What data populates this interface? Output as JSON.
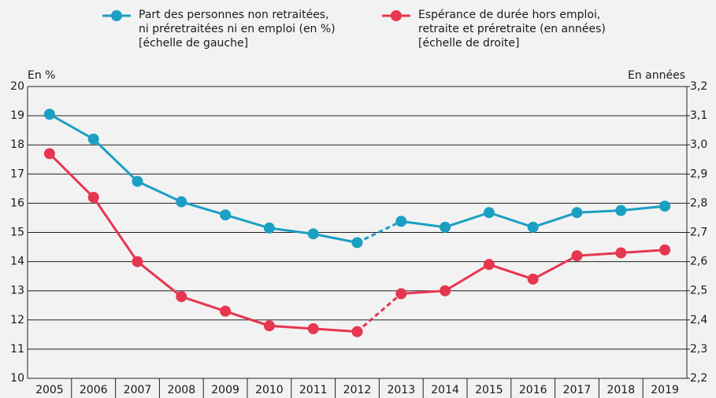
{
  "chart_data": {
    "type": "line",
    "categories": [
      "2005",
      "2006",
      "2007",
      "2008",
      "2009",
      "2010",
      "2011",
      "2012",
      "2013",
      "2014",
      "2015",
      "2016",
      "2017",
      "2018",
      "2019"
    ],
    "dashed_between": [
      "2012",
      "2013"
    ],
    "ylabel": "En %",
    "y2label": "En années",
    "ylim": [
      10,
      20
    ],
    "yticks": [
      10,
      11,
      12,
      13,
      14,
      15,
      16,
      17,
      18,
      19,
      20
    ],
    "y2lim": [
      2.2,
      3.2
    ],
    "y2ticks": [
      {
        "value": 2.2,
        "label": "2,2"
      },
      {
        "value": 2.3,
        "label": "2,3"
      },
      {
        "value": 2.4,
        "label": "2,4"
      },
      {
        "value": 2.5,
        "label": "2,5"
      },
      {
        "value": 2.6,
        "label": "2,6"
      },
      {
        "value": 2.7,
        "label": "2,7"
      },
      {
        "value": 2.8,
        "label": "2,8"
      },
      {
        "value": 2.9,
        "label": "2,9"
      },
      {
        "value": 3.0,
        "label": "3,0"
      },
      {
        "value": 3.1,
        "label": "3,1"
      },
      {
        "value": 3.2,
        "label": "3,2"
      }
    ],
    "grid": true,
    "series": [
      {
        "name": "Part des personnes non retraitées,\nni préretraitées ni en emploi (en %)\n[échelle de gauche]",
        "color": "#1b9fc3",
        "axis": "y",
        "values": [
          19.05,
          18.2,
          16.75,
          16.05,
          15.6,
          15.15,
          14.95,
          14.65,
          15.38,
          15.18,
          15.68,
          15.18,
          15.68,
          15.75,
          15.9
        ]
      },
      {
        "name": "Espérance de durée hors emploi,\nretraite et préretraite (en années)\n[échelle de droite]",
        "color": "#e63650",
        "axis": "y2",
        "values": [
          2.97,
          2.82,
          2.6,
          2.48,
          2.43,
          2.38,
          2.37,
          2.36,
          2.49,
          2.5,
          2.59,
          2.54,
          2.62,
          2.63,
          2.64
        ]
      }
    ]
  }
}
